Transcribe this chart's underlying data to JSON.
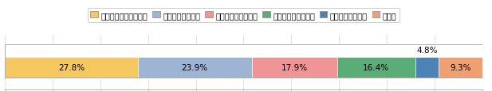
{
  "categories": [
    "不在だったことはない",
    "たまに不在だった",
    "ときどき不在だった",
    "ほとんど不在だった",
    "いつも不在だった",
    "無回答"
  ],
  "values": [
    27.8,
    23.9,
    17.9,
    16.4,
    4.8,
    9.3
  ],
  "colors": [
    "#F5C860",
    "#9DB4D4",
    "#F09498",
    "#5BAD78",
    "#4C82B5",
    "#F0A070"
  ],
  "above_bar_index": 4,
  "above_bar_label": "4.8%",
  "bar_labels": [
    "27.8%",
    "23.9%",
    "17.9%",
    "16.4%",
    "",
    "9.3%"
  ],
  "xlim": [
    0,
    100
  ],
  "xticks": [
    0,
    10,
    20,
    30,
    40,
    50,
    60,
    70,
    80,
    90,
    100
  ],
  "xlabel_suffix": "（%）",
  "background_color": "#ffffff",
  "legend_fontsize": 7.0,
  "bar_label_fontsize": 7.5,
  "tick_fontsize": 7.0,
  "grid_color": "#cccccc"
}
